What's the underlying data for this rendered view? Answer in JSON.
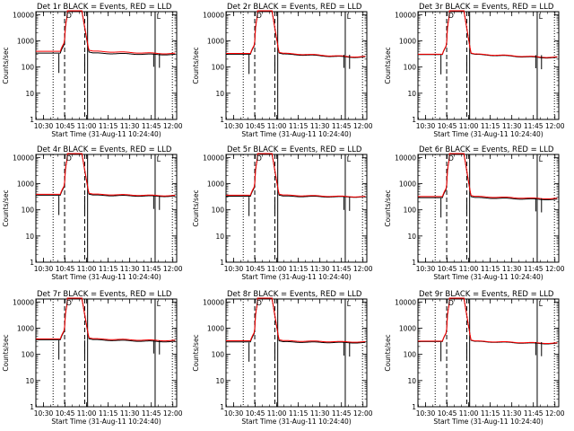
{
  "figure": {
    "xlabel": "Start Time (31-Aug-11 10:24:40)",
    "ylabel": "Counts/sec"
  },
  "chart_data": [
    {
      "type": "line",
      "title": "Det 1r BLACK = Events, RED = LLD",
      "variant": 0
    },
    {
      "type": "line",
      "title": "Det 2r BLACK = Events, RED = LLD",
      "variant": 1
    },
    {
      "type": "line",
      "title": "Det 3r BLACK = Events, RED = LLD",
      "variant": 2
    },
    {
      "type": "line",
      "title": "Det 4r BLACK = Events, RED = LLD",
      "variant": 3
    },
    {
      "type": "line",
      "title": "Det 5r BLACK = Events, RED = LLD",
      "variant": 4
    },
    {
      "type": "line",
      "title": "Det 6r BLACK = Events, RED = LLD",
      "variant": 5
    },
    {
      "type": "line",
      "title": "Det 7r BLACK = Events, RED = LLD",
      "variant": 6
    },
    {
      "type": "line",
      "title": "Det 8r BLACK = Events, RED = LLD",
      "variant": 7
    },
    {
      "type": "line",
      "title": "Det 9r BLACK = Events, RED = LLD",
      "variant": 8
    }
  ],
  "shared": {
    "x_ticks": [
      "10:30",
      "10:45",
      "11:00",
      "11:15",
      "11:30",
      "11:45",
      "12:00"
    ],
    "x_tick_minutes": [
      5.33,
      20.33,
      35.33,
      50.33,
      65.33,
      80.33,
      95.33
    ],
    "xlim_minutes": [
      0,
      98
    ],
    "y_ticks": [
      "1",
      "10",
      "100",
      "1000",
      "10000"
    ],
    "y_tick_values": [
      1,
      10,
      100,
      1000,
      10000
    ],
    "ylim": [
      1,
      13000
    ],
    "y_scale": "log",
    "series": [
      {
        "name": "Events",
        "color": "#000000"
      },
      {
        "name": "LLD",
        "color": "#ff0000"
      }
    ],
    "marker_label": "D",
    "corner_label": "L",
    "black_levels": [
      340,
      310,
      300,
      360,
      330,
      290,
      360,
      300,
      310
    ],
    "black_end_levels": [
      300,
      240,
      230,
      330,
      310,
      250,
      310,
      280,
      260
    ],
    "red_levels": [
      400,
      330,
      310,
      390,
      360,
      320,
      390,
      330,
      320
    ],
    "red_end_levels": [
      330,
      250,
      240,
      350,
      320,
      270,
      340,
      300,
      270
    ],
    "vlines": [
      {
        "minute": 12,
        "style": "dotted"
      },
      {
        "minute": 20,
        "style": "dashed"
      },
      {
        "minute": 34,
        "style": "dashed"
      },
      {
        "minute": 36,
        "style": "solid"
      },
      {
        "minute": 83,
        "style": "solid"
      },
      {
        "minute": 95,
        "style": "dotted"
      }
    ]
  }
}
